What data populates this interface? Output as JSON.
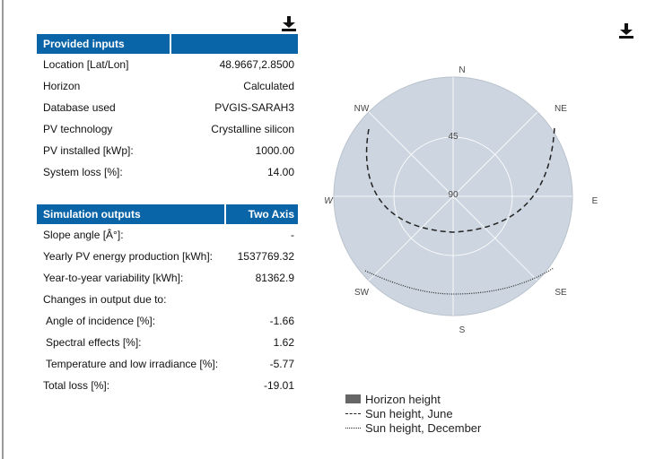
{
  "provided_inputs": {
    "header": "Provided inputs",
    "rows": [
      {
        "label": "Location [Lat/Lon]",
        "value": "48.9667,2.8500"
      },
      {
        "label": "Horizon",
        "value": "Calculated"
      },
      {
        "label": "Database used",
        "value": "PVGIS-SARAH3"
      },
      {
        "label": "PV technology",
        "value": "Crystalline silicon"
      },
      {
        "label": "PV installed [kWp]:",
        "value": "1000.00"
      },
      {
        "label": "System loss [%]:",
        "value": "14.00"
      }
    ]
  },
  "simulation_outputs": {
    "header": "Simulation outputs",
    "mode": "Two Axis",
    "rows": [
      {
        "label": "Slope angle [Â°]:",
        "value": "-"
      },
      {
        "label": "Yearly PV energy production [kWh]:",
        "value": "1537769.32"
      },
      {
        "label": "Year-to-year variability [kWh]:",
        "value": "81362.9"
      },
      {
        "label": "Changes in output due to:",
        "value": ""
      },
      {
        "label": "Angle of incidence [%]:",
        "value": "-1.66"
      },
      {
        "label": "Spectral effects [%]:",
        "value": "1.62"
      },
      {
        "label": "Temperature and low irradiance [%]:",
        "value": "-5.77"
      },
      {
        "label": "Total loss [%]:",
        "value": "-19.01"
      }
    ]
  },
  "icons": {
    "download_left": "download-icon",
    "download_right": "download-icon"
  },
  "chart_data": {
    "type": "polar",
    "compass": {
      "N": "N",
      "NE": "NE",
      "E": "E",
      "SE": "SE",
      "S": "S",
      "SW": "SW",
      "W": "W",
      "NW": "NW"
    },
    "ring_labels": [
      "45",
      "90"
    ],
    "legend": [
      "Horizon height",
      "Sun height, June",
      "Sun height, December"
    ],
    "colors": {
      "horizon_fill": "#cdd6e0",
      "june": "#222222",
      "december": "#222222"
    }
  }
}
